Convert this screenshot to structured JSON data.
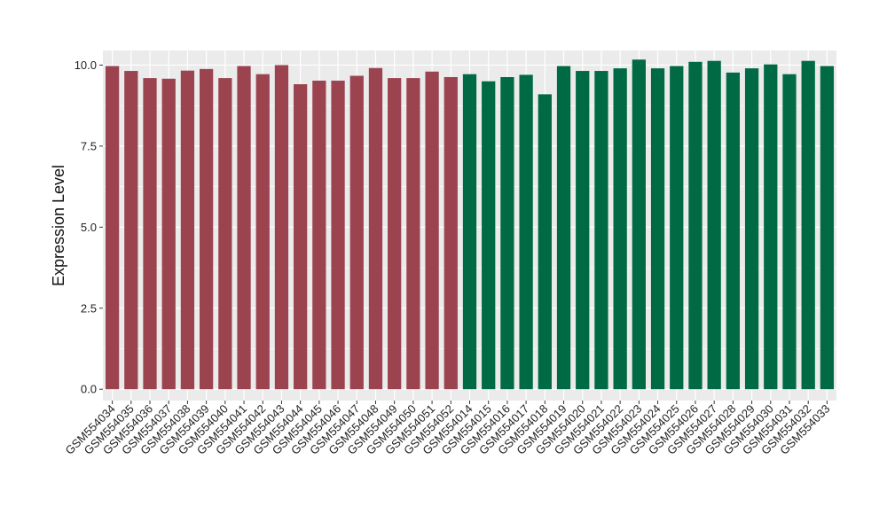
{
  "chart_data": {
    "type": "bar",
    "title": "",
    "xlabel": "",
    "ylabel": "Expression Level",
    "ylim": [
      -0.35,
      10.45
    ],
    "yticks": [
      0.0,
      2.5,
      5.0,
      7.5,
      10.0
    ],
    "ytick_labels": [
      "0.0",
      "2.5",
      "5.0",
      "7.5",
      "10.0"
    ],
    "grid": true,
    "legend": "none",
    "panel_background": "#ebebeb",
    "grid_color": "#ffffff",
    "colors": {
      "group_1": "#9b4450",
      "group_2": "#006a45"
    },
    "categories": [
      "GSM554034",
      "GSM554035",
      "GSM554036",
      "GSM554037",
      "GSM554038",
      "GSM554039",
      "GSM554040",
      "GSM554041",
      "GSM554042",
      "GSM554043",
      "GSM554044",
      "GSM554045",
      "GSM554046",
      "GSM554047",
      "GSM554048",
      "GSM554049",
      "GSM554050",
      "GSM554051",
      "GSM554052",
      "GSM554014",
      "GSM554015",
      "GSM554016",
      "GSM554017",
      "GSM554018",
      "GSM554019",
      "GSM554020",
      "GSM554021",
      "GSM554022",
      "GSM554023",
      "GSM554024",
      "GSM554025",
      "GSM554026",
      "GSM554027",
      "GSM554028",
      "GSM554029",
      "GSM554030",
      "GSM554031",
      "GSM554032",
      "GSM554033"
    ],
    "values": [
      9.97,
      9.82,
      9.6,
      9.58,
      9.83,
      9.88,
      9.6,
      9.97,
      9.72,
      10.0,
      9.41,
      9.52,
      9.52,
      9.67,
      9.91,
      9.6,
      9.6,
      9.8,
      9.63,
      9.72,
      9.5,
      9.63,
      9.7,
      9.1,
      9.97,
      9.82,
      9.82,
      9.9,
      10.17,
      9.9,
      9.97,
      10.1,
      10.13,
      9.77,
      9.9,
      10.02,
      9.72,
      10.13,
      9.97
    ],
    "bar_groups": [
      "group_1",
      "group_1",
      "group_1",
      "group_1",
      "group_1",
      "group_1",
      "group_1",
      "group_1",
      "group_1",
      "group_1",
      "group_1",
      "group_1",
      "group_1",
      "group_1",
      "group_1",
      "group_1",
      "group_1",
      "group_1",
      "group_1",
      "group_2",
      "group_2",
      "group_2",
      "group_2",
      "group_2",
      "group_2",
      "group_2",
      "group_2",
      "group_2",
      "group_2",
      "group_2",
      "group_2",
      "group_2",
      "group_2",
      "group_2",
      "group_2",
      "group_2",
      "group_2",
      "group_2",
      "group_2"
    ]
  }
}
